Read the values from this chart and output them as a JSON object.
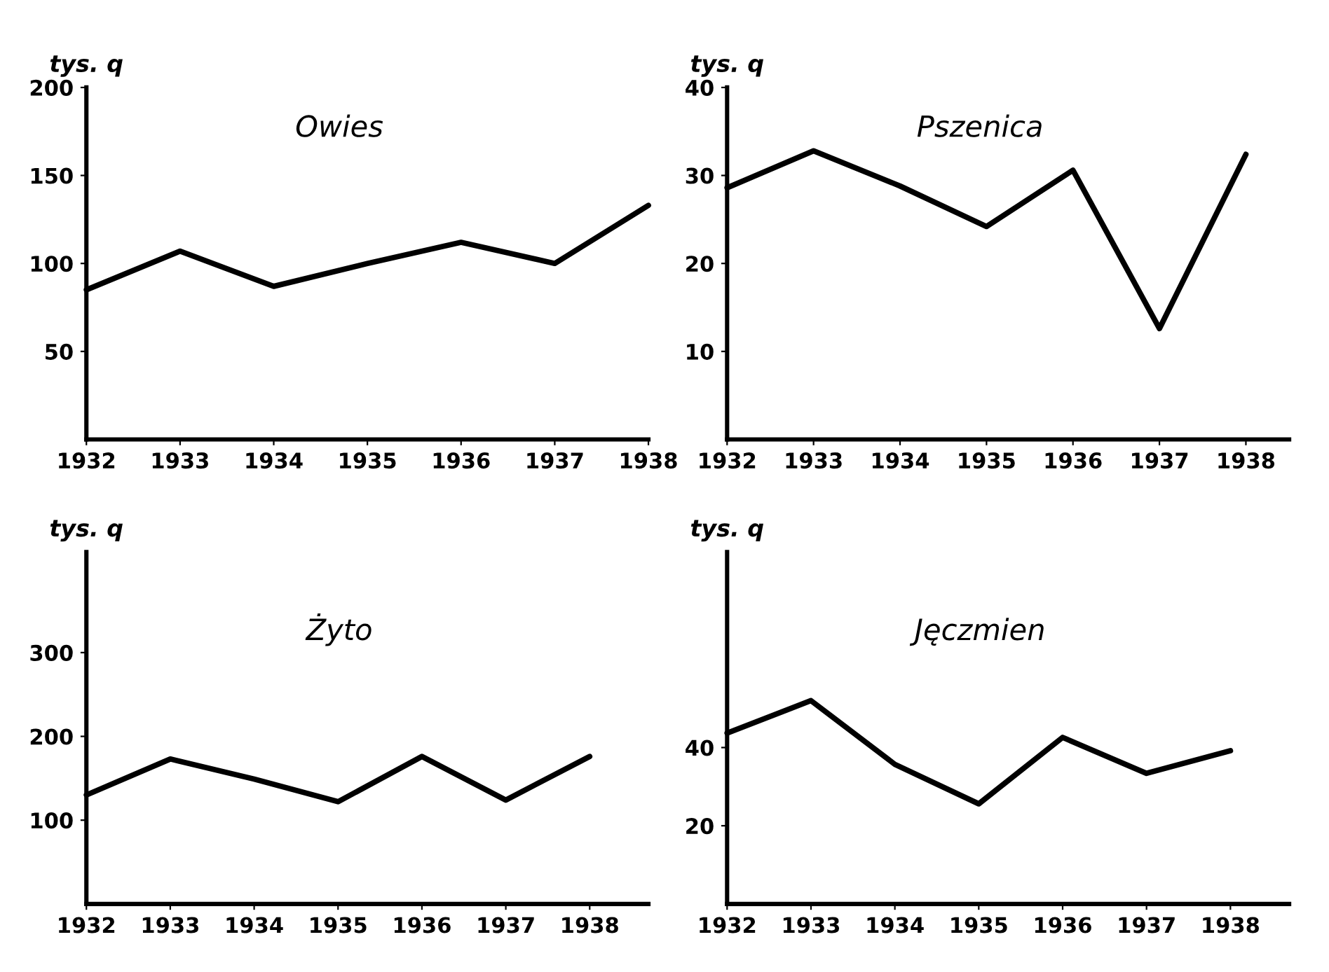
{
  "chart_data": [
    {
      "type": "line",
      "title": "Owies",
      "ylabel": "tys. q",
      "x": [
        1932,
        1933,
        1934,
        1935,
        1936,
        1937,
        1938
      ],
      "series": [
        {
          "color": "#000000",
          "values": [
            85,
            107,
            87,
            100,
            112,
            100,
            133
          ]
        }
      ],
      "xlim": [
        1932,
        1938
      ],
      "xticks": [
        1932,
        1933,
        1934,
        1935,
        1936,
        1937,
        1938
      ],
      "ylim": [
        0,
        200
      ],
      "yticks": [
        50,
        100,
        150,
        200
      ],
      "grid": false,
      "marker": "none",
      "line_style": "solid"
    },
    {
      "type": "line",
      "title": "Pszenica",
      "ylabel": "tys. q",
      "x": [
        1932,
        1933,
        1934,
        1935,
        1936,
        1937,
        1938
      ],
      "series": [
        {
          "color": "#000000",
          "values": [
            28.6,
            32.8,
            28.8,
            24.2,
            30.6,
            12.6,
            32.4
          ]
        }
      ],
      "xlim": [
        1932,
        1938.5
      ],
      "xticks": [
        1932,
        1933,
        1934,
        1935,
        1936,
        1937,
        1938
      ],
      "ylim": [
        0,
        40
      ],
      "yticks": [
        10,
        20,
        30,
        40
      ],
      "grid": false,
      "marker": "none",
      "line_style": "solid"
    },
    {
      "type": "line",
      "title": "Żyto",
      "ylabel": "tys. q",
      "x": [
        1932,
        1933,
        1934,
        1935,
        1936,
        1937,
        1938
      ],
      "series": [
        {
          "color": "#000000",
          "values": [
            130,
            173,
            149,
            122,
            176,
            124,
            176
          ]
        }
      ],
      "xlim": [
        1932,
        1938.7
      ],
      "xticks": [
        1932,
        1933,
        1934,
        1935,
        1936,
        1937,
        1938
      ],
      "ylim": [
        0,
        420
      ],
      "yticks": [
        100,
        200,
        300
      ],
      "grid": false,
      "marker": "none",
      "line_style": "solid"
    },
    {
      "type": "line",
      "title": "Jęczmien",
      "ylabel": "tys. q",
      "x": [
        1932,
        1933,
        1934,
        1935,
        1936,
        1937,
        1938
      ],
      "series": [
        {
          "color": "#000000",
          "values": [
            43.7,
            52,
            35.7,
            25.6,
            42.6,
            33.4,
            39.2
          ]
        }
      ],
      "xlim": [
        1932,
        1938.7
      ],
      "xticks": [
        1932,
        1933,
        1934,
        1935,
        1936,
        1937,
        1938
      ],
      "ylim": [
        0,
        90
      ],
      "yticks": [
        20,
        40
      ],
      "grid": false,
      "marker": "none",
      "line_style": "solid"
    }
  ]
}
